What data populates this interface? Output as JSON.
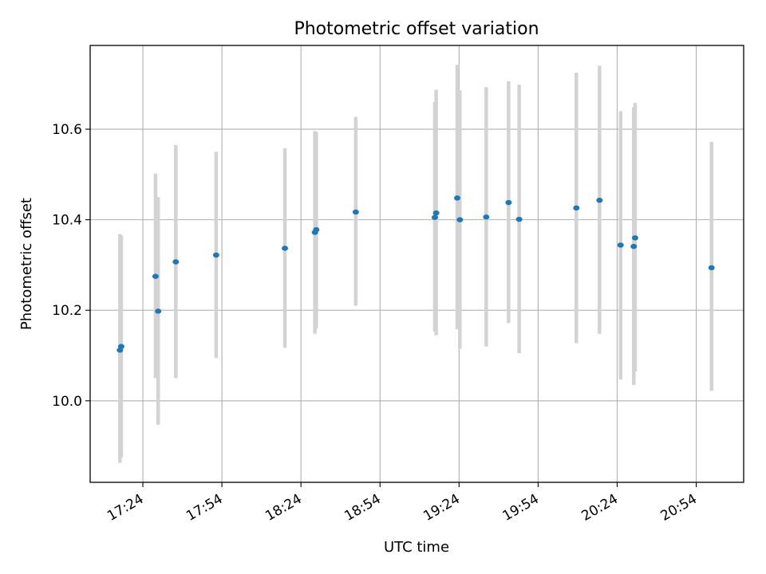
{
  "chart_data": {
    "type": "scatter",
    "title": "Photometric offset variation",
    "xlabel": "UTC time",
    "ylabel": "Photometric offset",
    "x_tick_labels": [
      "17:24",
      "17:54",
      "18:24",
      "18:54",
      "19:24",
      "19:54",
      "20:24",
      "20:54"
    ],
    "x_ticks_minutes": [
      1044,
      1074,
      1104,
      1134,
      1164,
      1194,
      1224,
      1254
    ],
    "y_tick_labels": [
      "10.0",
      "10.2",
      "10.4",
      "10.6"
    ],
    "y_ticks": [
      10.0,
      10.2,
      10.4,
      10.6
    ],
    "xlim_minutes": [
      1024,
      1272
    ],
    "ylim": [
      9.82,
      10.785
    ],
    "grid": true,
    "series": [
      {
        "marker_color": "#1f77b4",
        "errorbar_color": "#d3d3d3",
        "points": [
          {
            "time": "17:15",
            "minutes": 1035.3,
            "y": 10.112,
            "low": 9.863,
            "high": 10.368
          },
          {
            "time": "17:15",
            "minutes": 1035.8,
            "y": 10.12,
            "low": 9.875,
            "high": 10.365
          },
          {
            "time": "17:29",
            "minutes": 1048.8,
            "y": 10.275,
            "low": 10.05,
            "high": 10.502
          },
          {
            "time": "17:30",
            "minutes": 1049.8,
            "y": 10.198,
            "low": 9.947,
            "high": 10.45
          },
          {
            "time": "17:37",
            "minutes": 1056.5,
            "y": 10.307,
            "low": 10.05,
            "high": 10.565
          },
          {
            "time": "17:52",
            "minutes": 1071.8,
            "y": 10.322,
            "low": 10.095,
            "high": 10.55
          },
          {
            "time": "18:18",
            "minutes": 1097.9,
            "y": 10.337,
            "low": 10.117,
            "high": 10.558
          },
          {
            "time": "18:29",
            "minutes": 1109.3,
            "y": 10.372,
            "low": 10.148,
            "high": 10.596
          },
          {
            "time": "18:29",
            "minutes": 1109.8,
            "y": 10.378,
            "low": 10.16,
            "high": 10.594
          },
          {
            "time": "18:45",
            "minutes": 1124.8,
            "y": 10.417,
            "low": 10.21,
            "high": 10.627
          },
          {
            "time": "19:15",
            "minutes": 1154.8,
            "y": 10.405,
            "low": 10.153,
            "high": 10.66
          },
          {
            "time": "19:15",
            "minutes": 1155.3,
            "y": 10.415,
            "low": 10.145,
            "high": 10.687
          },
          {
            "time": "19:23",
            "minutes": 1163.3,
            "y": 10.448,
            "low": 10.158,
            "high": 10.742
          },
          {
            "time": "19:24",
            "minutes": 1164.3,
            "y": 10.4,
            "low": 10.115,
            "high": 10.686
          },
          {
            "time": "19:34",
            "minutes": 1174.3,
            "y": 10.406,
            "low": 10.12,
            "high": 10.693
          },
          {
            "time": "19:42",
            "minutes": 1182.8,
            "y": 10.438,
            "low": 10.172,
            "high": 10.706
          },
          {
            "time": "19:46",
            "minutes": 1186.8,
            "y": 10.401,
            "low": 10.105,
            "high": 10.698
          },
          {
            "time": "20:08",
            "minutes": 1208.5,
            "y": 10.426,
            "low": 10.127,
            "high": 10.725
          },
          {
            "time": "20:17",
            "minutes": 1217.3,
            "y": 10.443,
            "low": 10.148,
            "high": 10.74
          },
          {
            "time": "20:25",
            "minutes": 1225.3,
            "y": 10.344,
            "low": 10.047,
            "high": 10.64
          },
          {
            "time": "20:30",
            "minutes": 1230.3,
            "y": 10.341,
            "low": 10.035,
            "high": 10.648
          },
          {
            "time": "20:31",
            "minutes": 1230.8,
            "y": 10.36,
            "low": 10.065,
            "high": 10.658
          },
          {
            "time": "21:00",
            "minutes": 1259.8,
            "y": 10.294,
            "low": 10.022,
            "high": 10.572
          }
        ]
      }
    ]
  }
}
